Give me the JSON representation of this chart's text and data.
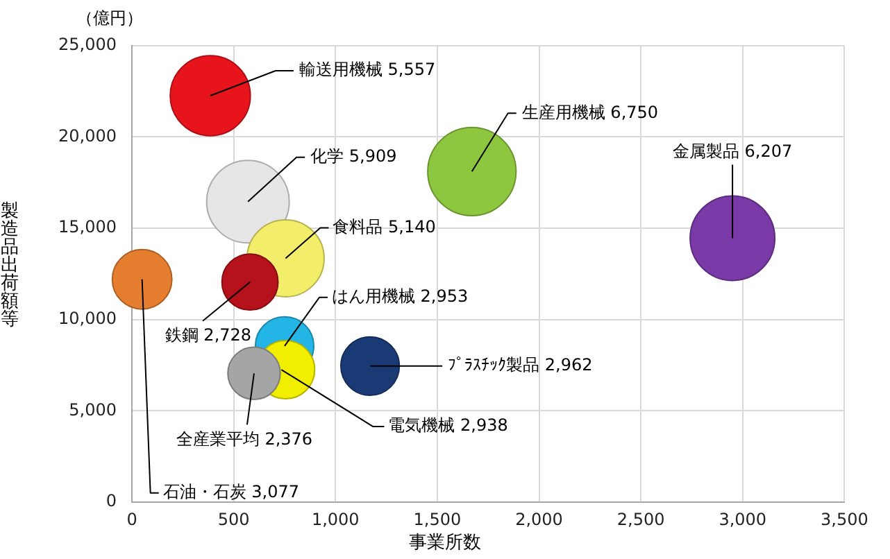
{
  "chart_data": {
    "type": "bubble",
    "xlabel": "事業所数",
    "ylabel": "製造品出荷額等",
    "annotations": [
      "（億円）"
    ],
    "xlim": [
      0,
      3500
    ],
    "ylim": [
      0,
      25000
    ],
    "xticks": [
      0,
      500,
      {
        "value": 1000,
        "label": "1,000"
      },
      {
        "value": 1500,
        "label": "1,500"
      },
      {
        "value": 2000,
        "label": "2,000"
      },
      {
        "value": 2500,
        "label": "2,500"
      },
      {
        "value": 3000,
        "label": "3,000"
      },
      {
        "value": 3500,
        "label": "3,500"
      }
    ],
    "yticks": [
      0,
      {
        "value": 5000,
        "label": "5,000"
      },
      {
        "value": 10000,
        "label": "10,000"
      },
      {
        "value": 15000,
        "label": "15,000"
      },
      {
        "value": 20000,
        "label": "20,000"
      },
      {
        "value": 25000,
        "label": "25,000"
      }
    ],
    "grid": true,
    "series": [
      {
        "name": "輸送用機械",
        "color": "#e8141c",
        "x": [
          385
        ],
        "values": [
          22250
        ],
        "sizes": [
          5557
        ],
        "value_labels": [
          "5,557"
        ]
      },
      {
        "name": "生産用機械",
        "color": "#8dc63f",
        "x": [
          1670
        ],
        "values": [
          18100
        ],
        "sizes": [
          6750
        ],
        "value_labels": [
          "6,750"
        ]
      },
      {
        "name": "金属製品",
        "color": "#7a3aa8",
        "x": [
          2950
        ],
        "values": [
          14450
        ],
        "sizes": [
          6207
        ],
        "value_labels": [
          "6,207"
        ]
      },
      {
        "name": "化学",
        "color": "#e6e6e6",
        "x": [
          570
        ],
        "values": [
          16450
        ],
        "sizes": [
          5909
        ],
        "value_labels": [
          "5,909"
        ]
      },
      {
        "name": "食料品",
        "color": "#f2ee6a",
        "x": [
          755
        ],
        "values": [
          13350
        ],
        "sizes": [
          5140
        ],
        "value_labels": [
          "5,140"
        ]
      },
      {
        "name": "鉄鋼",
        "color": "#b5121b",
        "x": [
          580
        ],
        "values": [
          12050
        ],
        "sizes": [
          2728
        ],
        "value_labels": [
          "2,728"
        ]
      },
      {
        "name": "石油・石炭",
        "color": "#e67e30",
        "x": [
          50
        ],
        "values": [
          12200
        ],
        "sizes": [
          3077
        ],
        "value_labels": [
          "3,077"
        ]
      },
      {
        "name": "はん用機械",
        "color": "#22b5e5",
        "x": [
          750
        ],
        "values": [
          8550
        ],
        "sizes": [
          2953
        ],
        "value_labels": [
          "2,953"
        ]
      },
      {
        "name": "電気機械",
        "color": "#f2ee00",
        "x": [
          755
        ],
        "values": [
          7250
        ],
        "sizes": [
          2938
        ],
        "value_labels": [
          "2,938"
        ]
      },
      {
        "name": "全産業平均",
        "color": "#a5a5a5",
        "x": [
          600
        ],
        "values": [
          7050
        ],
        "sizes": [
          2376
        ],
        "value_labels": [
          "2,376"
        ]
      },
      {
        "name": "ﾌﾟﾗｽﾁｯｸ製品",
        "color": "#1a3a75",
        "x": [
          1170
        ],
        "values": [
          7450
        ],
        "sizes": [
          2962
        ],
        "value_labels": [
          "2,962"
        ]
      }
    ]
  }
}
